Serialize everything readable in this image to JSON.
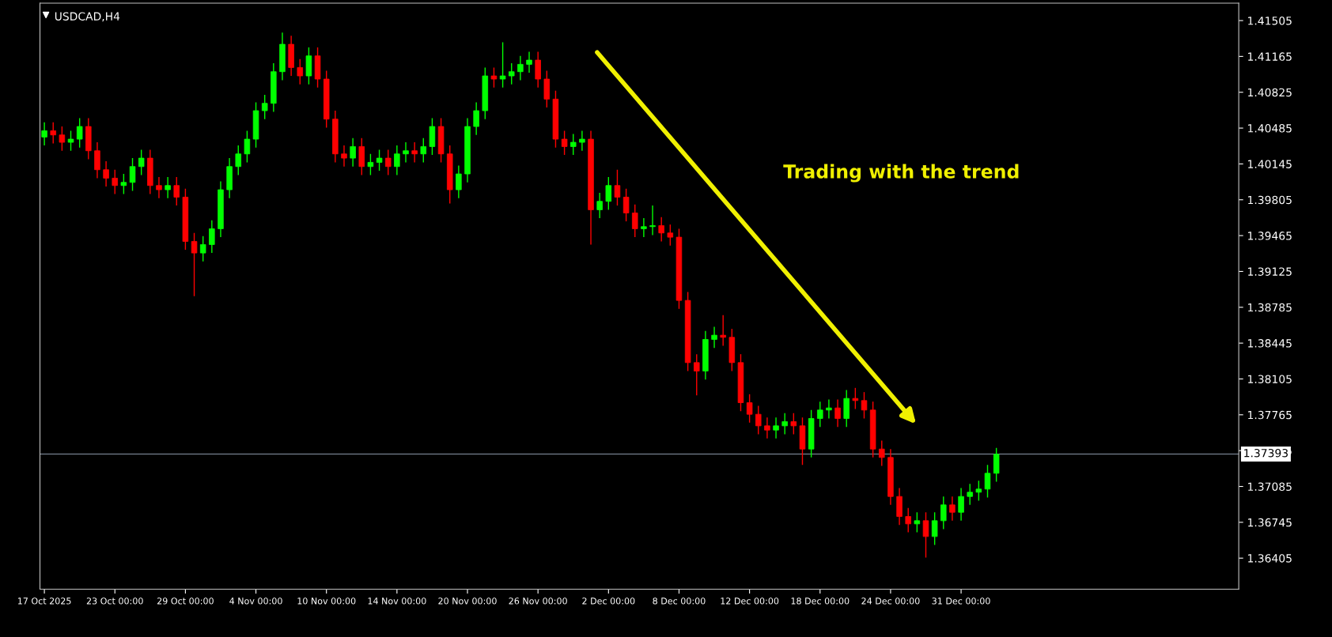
{
  "chart_data": {
    "type": "candlestick",
    "title": "USDCAD,H4",
    "annotations": [
      "Trading with the trend"
    ],
    "colors": [
      "#00ff00",
      "#ff0000",
      "#ff0000",
      "#00ff00",
      "#00ff00",
      "#ff0000",
      "#ff0000",
      "#ff0000",
      "#ff0000",
      "#00ff00",
      "#00ff00",
      "#00ff00",
      "#ff0000",
      "#ff0000",
      "#00ff00",
      "#ff0000",
      "#ff0000",
      "#ff0000",
      "#00ff00",
      "#00ff00",
      "#00ff00",
      "#00ff00",
      "#00ff00",
      "#00ff00",
      "#00ff00",
      "#00ff00",
      "#00ff00",
      "#00ff00",
      "#ff0000",
      "#ff0000",
      "#00ff00",
      "#ff0000",
      "#ff0000",
      "#ff0000",
      "#ff0000",
      "#00ff00",
      "#ff0000",
      "#00ff00",
      "#00ff00",
      "#ff0000",
      "#00ff00",
      "#00ff00",
      "#ff0000",
      "#00ff00",
      "#00ff00",
      "#ff0000",
      "#ff0000",
      "#00ff00",
      "#00ff00",
      "#00ff00",
      "#00ff00",
      "#ff0000",
      "#00ff00",
      "#00ff00",
      "#00ff00",
      "#00ff00",
      "#ff0000",
      "#ff0000",
      "#ff0000",
      "#ff0000",
      "#00ff00",
      "#00ff00",
      "#ff0000",
      "#00ff00",
      "#00ff00",
      "#ff0000",
      "#ff0000",
      "#ff0000",
      "#00ff00",
      "#00ff00",
      "#ff0000",
      "#ff0000",
      "#ff0000",
      "#ff0000",
      "#ff0000",
      "#00ff00",
      "#00ff00",
      "#ff0000",
      "#ff0000",
      "#ff0000",
      "#ff0000",
      "#ff0000",
      "#ff0000",
      "#00ff00",
      "#00ff00",
      "#ff0000",
      "#ff0000",
      "#00ff00",
      "#00ff00",
      "#00ff00",
      "#ff0000",
      "#00ff00",
      "#ff0000",
      "#ff0000",
      "#ff0000",
      "#ff0000",
      "#ff0000",
      "#ff0000",
      "#ff0000",
      "#00ff00",
      "#ff0000",
      "#00ff00",
      "#00ff00",
      "#ff0000",
      "#00ff00",
      "#00ff00",
      "#00ff00",
      "#00ff00",
      "#00ff00",
      null,
      null,
      null,
      null,
      null,
      null,
      null,
      null,
      null,
      null,
      null,
      null,
      null,
      null,
      null,
      null,
      null,
      null,
      null,
      null,
      null,
      null,
      null,
      null,
      null,
      null,
      null
    ],
    "categories": [
      "17 Oct 2025",
      null,
      null,
      null,
      null,
      null,
      null,
      null,
      "23 Oct 00:00",
      null,
      null,
      null,
      null,
      null,
      null,
      null,
      "29 Oct 00:00",
      null,
      null,
      null,
      null,
      null,
      null,
      null,
      "4 Nov 00:00",
      null,
      null,
      null,
      null,
      null,
      null,
      null,
      "10 Nov 00:00",
      null,
      null,
      null,
      null,
      null,
      null,
      null,
      "14 Nov 00:00",
      null,
      null,
      null,
      null,
      null,
      null,
      null,
      "20 Nov 00:00",
      null,
      null,
      null,
      null,
      null,
      null,
      null,
      "26 Nov 00:00",
      null,
      null,
      null,
      null,
      null,
      null,
      null,
      "2 Dec 00:00",
      null,
      null,
      null,
      null,
      null,
      null,
      null,
      "8 Dec 00:00",
      null,
      null,
      null,
      null,
      null,
      null,
      null,
      "12 Dec 00:00",
      null,
      null,
      null,
      null,
      null,
      null,
      null,
      "18 Dec 00:00",
      null,
      null,
      null,
      null,
      null,
      null,
      null,
      "24 Dec 00:00",
      null,
      null,
      null,
      null,
      null,
      null,
      null,
      "31 Dec 00:00",
      null,
      null,
      null,
      null,
      null,
      null,
      null,
      null,
      null,
      null,
      null,
      null,
      null,
      null,
      null,
      null,
      null,
      null,
      null,
      null,
      null,
      null,
      null,
      null,
      null,
      null,
      null,
      null,
      null,
      null,
      null
    ],
    "ohlc": [
      [
        1.404,
        1.4054,
        1.4032,
        1.4046
      ],
      [
        1.4046,
        1.4054,
        1.4034,
        1.4042
      ],
      [
        1.4042,
        1.405,
        1.4027,
        1.4035
      ],
      [
        1.4035,
        1.4046,
        1.4027,
        1.4038
      ],
      [
        1.4038,
        1.4058,
        1.403,
        1.405
      ],
      [
        1.405,
        1.4058,
        1.4019,
        1.4027
      ],
      [
        1.4027,
        1.4035,
        1.4001,
        1.4009
      ],
      [
        1.4009,
        1.4017,
        1.3993,
        1.4001
      ],
      [
        1.4001,
        1.4009,
        1.3986,
        1.3994
      ],
      [
        1.3994,
        1.4005,
        1.3986,
        1.3997
      ],
      [
        1.3997,
        1.402,
        1.3989,
        1.4012
      ],
      [
        1.4012,
        1.4028,
        1.4004,
        1.402
      ],
      [
        1.402,
        1.4028,
        1.3986,
        1.3994
      ],
      [
        1.3994,
        1.4002,
        1.3982,
        1.399
      ],
      [
        1.399,
        1.4002,
        1.3982,
        1.3994
      ],
      [
        1.3994,
        1.4002,
        1.3975,
        1.3983
      ],
      [
        1.3983,
        1.3991,
        1.3933,
        1.3941
      ],
      [
        1.3941,
        1.3949,
        1.3889,
        1.393
      ],
      [
        1.393,
        1.3946,
        1.3922,
        1.3938
      ],
      [
        1.3938,
        1.3961,
        1.393,
        1.3953
      ],
      [
        1.3953,
        1.3998,
        1.3945,
        1.399
      ],
      [
        1.399,
        1.402,
        1.3982,
        1.4012
      ],
      [
        1.4012,
        1.4032,
        1.4004,
        1.4024
      ],
      [
        1.4024,
        1.4046,
        1.4016,
        1.4038
      ],
      [
        1.4038,
        1.4073,
        1.403,
        1.4065
      ],
      [
        1.4065,
        1.408,
        1.4057,
        1.4072
      ],
      [
        1.4072,
        1.411,
        1.4064,
        1.4102
      ],
      [
        1.4102,
        1.4139,
        1.4094,
        1.4128
      ],
      [
        1.4128,
        1.4136,
        1.4098,
        1.4106
      ],
      [
        1.4106,
        1.4114,
        1.409,
        1.4098
      ],
      [
        1.4098,
        1.4125,
        1.409,
        1.4117
      ],
      [
        1.4117,
        1.4125,
        1.4087,
        1.4095
      ],
      [
        1.4095,
        1.4103,
        1.4049,
        1.4057
      ],
      [
        1.4057,
        1.4065,
        1.4016,
        1.4024
      ],
      [
        1.4024,
        1.4032,
        1.4012,
        1.402
      ],
      [
        1.402,
        1.4039,
        1.4012,
        1.4031
      ],
      [
        1.4031,
        1.4039,
        1.4004,
        1.4012
      ],
      [
        1.4012,
        1.4024,
        1.4004,
        1.4016
      ],
      [
        1.4016,
        1.4028,
        1.4008,
        1.402
      ],
      [
        1.402,
        1.4028,
        1.4004,
        1.4012
      ],
      [
        1.4012,
        1.4032,
        1.4004,
        1.4024
      ],
      [
        1.4024,
        1.4035,
        1.4016,
        1.4027
      ],
      [
        1.4027,
        1.4035,
        1.4016,
        1.4024
      ],
      [
        1.4024,
        1.4039,
        1.4016,
        1.4031
      ],
      [
        1.4031,
        1.4058,
        1.4023,
        1.405
      ],
      [
        1.405,
        1.4058,
        1.4016,
        1.4024
      ],
      [
        1.4024,
        1.4032,
        1.3977,
        1.399
      ],
      [
        1.399,
        1.4013,
        1.3982,
        1.4005
      ],
      [
        1.4005,
        1.4058,
        1.3997,
        1.405
      ],
      [
        1.405,
        1.4073,
        1.4042,
        1.4065
      ],
      [
        1.4065,
        1.4106,
        1.4057,
        1.4098
      ],
      [
        1.4098,
        1.4106,
        1.4087,
        1.4095
      ],
      [
        1.4095,
        1.413,
        1.4087,
        1.4098
      ],
      [
        1.4098,
        1.411,
        1.409,
        1.4102
      ],
      [
        1.4102,
        1.4117,
        1.4094,
        1.4109
      ],
      [
        1.4109,
        1.4121,
        1.4101,
        1.4113
      ],
      [
        1.4113,
        1.4121,
        1.4087,
        1.4095
      ],
      [
        1.4095,
        1.4103,
        1.4068,
        1.4076
      ],
      [
        1.4076,
        1.4084,
        1.403,
        1.4038
      ],
      [
        1.4038,
        1.4046,
        1.4023,
        1.4031
      ],
      [
        1.4031,
        1.4043,
        1.4023,
        1.4035
      ],
      [
        1.4035,
        1.4046,
        1.4027,
        1.4038
      ],
      [
        1.4038,
        1.4046,
        1.3938,
        1.3971
      ],
      [
        1.3971,
        1.3987,
        1.3963,
        1.3979
      ],
      [
        1.3979,
        1.4002,
        1.3971,
        1.3994
      ],
      [
        1.3994,
        1.4009,
        1.3975,
        1.3983
      ],
      [
        1.3983,
        1.3991,
        1.396,
        1.3968
      ],
      [
        1.3968,
        1.3976,
        1.3945,
        1.3953
      ],
      [
        1.3953,
        1.3963,
        1.3945,
        1.3955
      ],
      [
        1.3955,
        1.3975,
        1.3947,
        1.3956
      ],
      [
        1.3956,
        1.3964,
        1.3941,
        1.3949
      ],
      [
        1.3949,
        1.3957,
        1.3937,
        1.3945
      ],
      [
        1.3945,
        1.3953,
        1.3877,
        1.3885
      ],
      [
        1.3885,
        1.3893,
        1.3818,
        1.3826
      ],
      [
        1.3826,
        1.3834,
        1.3795,
        1.3818
      ],
      [
        1.3818,
        1.3856,
        1.381,
        1.3848
      ],
      [
        1.3848,
        1.386,
        1.384,
        1.3852
      ],
      [
        1.3852,
        1.3871,
        1.3842,
        1.385
      ],
      [
        1.385,
        1.3858,
        1.3818,
        1.3826
      ],
      [
        1.3826,
        1.3834,
        1.378,
        1.3788
      ],
      [
        1.3788,
        1.3796,
        1.3769,
        1.3777
      ],
      [
        1.3777,
        1.3785,
        1.3758,
        1.3766
      ],
      [
        1.3766,
        1.3774,
        1.3754,
        1.3762
      ],
      [
        1.3762,
        1.3774,
        1.3754,
        1.3766
      ],
      [
        1.3766,
        1.3778,
        1.3758,
        1.377
      ],
      [
        1.377,
        1.3778,
        1.3758,
        1.3766
      ],
      [
        1.3766,
        1.3774,
        1.3729,
        1.3744
      ],
      [
        1.3744,
        1.3781,
        1.3736,
        1.3773
      ],
      [
        1.3773,
        1.3789,
        1.3765,
        1.3781
      ],
      [
        1.3781,
        1.3791,
        1.3773,
        1.3783
      ],
      [
        1.3783,
        1.3791,
        1.3765,
        1.3773
      ],
      [
        1.3773,
        1.38,
        1.3765,
        1.3792
      ],
      [
        1.3792,
        1.3802,
        1.3782,
        1.379
      ],
      [
        1.379,
        1.3798,
        1.3773,
        1.3781
      ],
      [
        1.3781,
        1.3789,
        1.3736,
        1.3744
      ],
      [
        1.3744,
        1.3752,
        1.3728,
        1.3736
      ],
      [
        1.3736,
        1.3744,
        1.3691,
        1.3699
      ],
      [
        1.3699,
        1.3707,
        1.3672,
        1.368
      ],
      [
        1.368,
        1.3688,
        1.3665,
        1.3673
      ],
      [
        1.3673,
        1.3684,
        1.3665,
        1.3676
      ],
      [
        1.3676,
        1.3684,
        1.3641,
        1.3661
      ],
      [
        1.3661,
        1.3684,
        1.3653,
        1.3676
      ],
      [
        1.3676,
        1.3699,
        1.3668,
        1.3691
      ],
      [
        1.3691,
        1.3699,
        1.3676,
        1.3684
      ],
      [
        1.3684,
        1.3707,
        1.3676,
        1.3699
      ],
      [
        1.3699,
        1.3711,
        1.3691,
        1.3703
      ],
      [
        1.3703,
        1.3714,
        1.3695,
        1.3706
      ],
      [
        1.3706,
        1.3729,
        1.3698,
        1.3721
      ],
      [
        1.3721,
        1.3745,
        1.3713,
        1.3739
      ],
      null,
      null,
      null,
      null,
      null,
      null,
      null,
      null,
      null,
      null,
      null,
      null,
      null,
      null,
      null,
      null,
      null,
      null,
      null,
      null,
      null,
      null,
      null,
      null,
      null,
      null,
      null
    ],
    "ylim": [
      1.3611,
      1.4167
    ],
    "yticks": [
      1.36405,
      1.36745,
      1.37085,
      1.37425,
      1.37765,
      1.38105,
      1.38445,
      1.38785,
      1.39125,
      1.39465,
      1.39805,
      1.40145,
      1.40485,
      1.40825,
      1.41165,
      1.41505
    ],
    "ref_lines": [
      {
        "axis": "y",
        "value": 1.37393,
        "label": "1.37393",
        "color": "#8a97a8",
        "line_style": "solid"
      }
    ],
    "grid": false,
    "legend": false
  }
}
